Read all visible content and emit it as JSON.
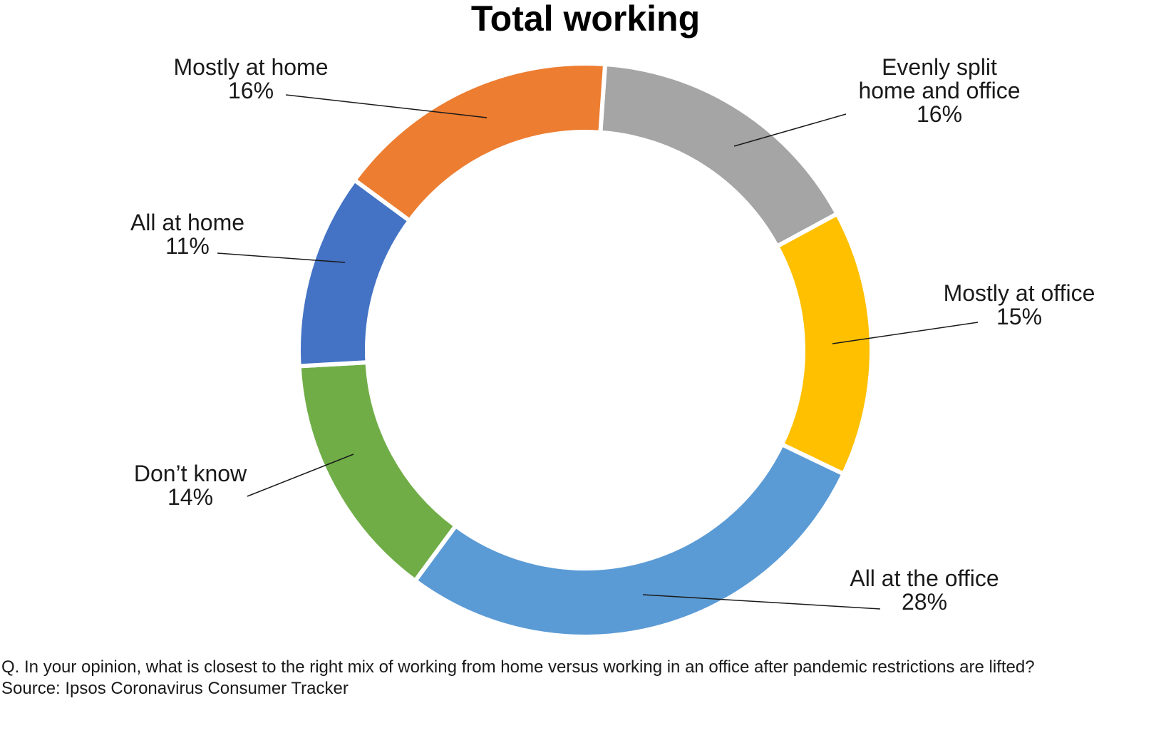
{
  "chart_data": {
    "type": "pie",
    "variant": "donut",
    "title": "Total working",
    "unit": "%",
    "start_angle_deg": 4,
    "direction": "clockwise",
    "slices": [
      {
        "label": "Evenly split home and office",
        "label_lines": [
          "Evenly split",
          "home and office",
          "16%"
        ],
        "value": 16,
        "color": "#A5A5A5"
      },
      {
        "label": "Mostly at office",
        "label_lines": [
          "Mostly at office",
          "15%"
        ],
        "value": 15,
        "color": "#FFC000"
      },
      {
        "label": "All at the office",
        "label_lines": [
          "All at the office",
          "28%"
        ],
        "value": 28,
        "color": "#5B9BD5"
      },
      {
        "label": "Don’t know",
        "label_lines": [
          "Don’t know",
          "14%"
        ],
        "value": 14,
        "color": "#70AD47"
      },
      {
        "label": "All at home",
        "label_lines": [
          "All at home",
          "11%"
        ],
        "value": 11,
        "color": "#4472C4"
      },
      {
        "label": "Mostly at home",
        "label_lines": [
          "Mostly at home",
          "16%"
        ],
        "value": 16,
        "color": "#ED7D31"
      }
    ]
  },
  "footnotes": {
    "question": "Q. In your opinion, what is closest to the right mix of working from home versus working in an office after pandemic restrictions are lifted?",
    "source": "Source: Ipsos Coronavirus Consumer Tracker"
  }
}
